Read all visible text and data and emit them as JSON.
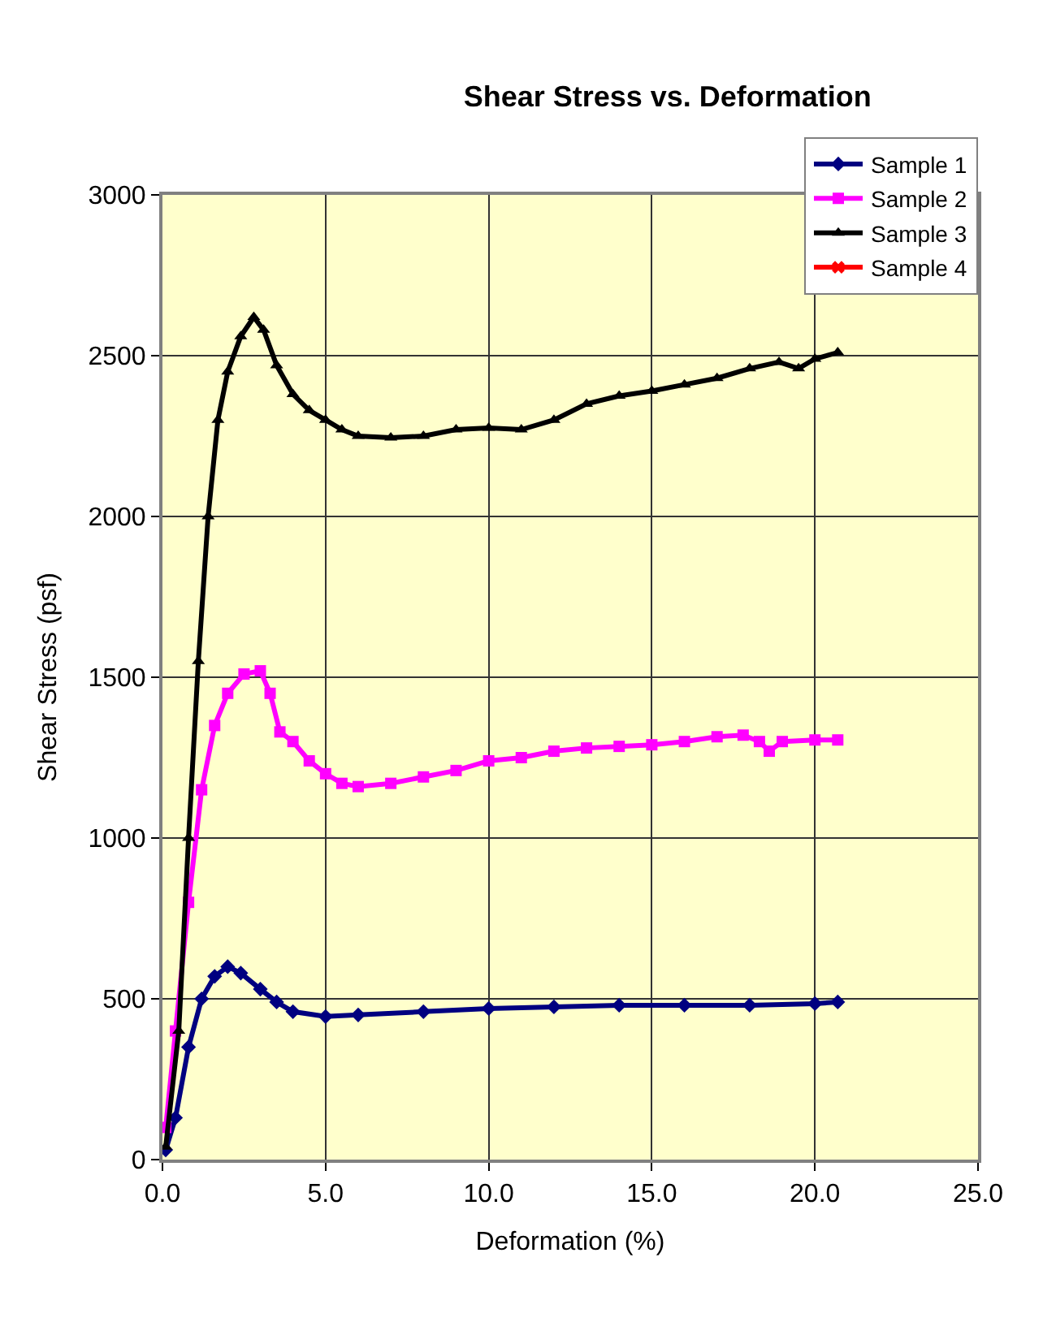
{
  "chart_data": {
    "type": "line",
    "title": "Shear Stress vs. Deformation",
    "xlabel": "Deformation (%)",
    "ylabel": "Shear Stress (psf)",
    "xlim": [
      0,
      25
    ],
    "xticks": [
      {
        "value": 0,
        "label": "0.0"
      },
      {
        "value": 5,
        "label": "5.0"
      },
      {
        "value": 10,
        "label": "10.0"
      },
      {
        "value": 15,
        "label": "15.0"
      },
      {
        "value": 20,
        "label": "20.0"
      },
      {
        "value": 25,
        "label": "25.0"
      }
    ],
    "ylim": [
      0,
      3000
    ],
    "yticks": [
      0,
      500,
      1000,
      1500,
      2000,
      2500,
      3000
    ],
    "grid": true,
    "legend": "top right",
    "series": [
      {
        "name": "Sample 1",
        "color": "#000080",
        "marker": "diamond",
        "x": [
          0.1,
          0.4,
          0.8,
          1.2,
          1.6,
          2.0,
          2.4,
          3.0,
          3.5,
          4.0,
          5.0,
          6.0,
          8.0,
          10.0,
          12.0,
          14.0,
          16.0,
          18.0,
          20.0,
          20.7
        ],
        "values": [
          30,
          130,
          350,
          500,
          570,
          600,
          580,
          530,
          490,
          460,
          445,
          450,
          460,
          470,
          475,
          480,
          480,
          480,
          485,
          490
        ]
      },
      {
        "name": "Sample 2",
        "color": "#ff00ff",
        "marker": "square",
        "x": [
          0.1,
          0.4,
          0.8,
          1.2,
          1.6,
          2.0,
          2.5,
          3.0,
          3.3,
          3.6,
          4.0,
          4.5,
          5.0,
          5.5,
          6.0,
          7.0,
          8.0,
          9.0,
          10.0,
          11.0,
          12.0,
          13.0,
          14.0,
          15.0,
          16.0,
          17.0,
          17.8,
          18.3,
          18.6,
          19.0,
          20.0,
          20.7
        ],
        "values": [
          100,
          400,
          800,
          1150,
          1350,
          1450,
          1510,
          1520,
          1450,
          1330,
          1300,
          1240,
          1200,
          1170,
          1160,
          1170,
          1190,
          1210,
          1240,
          1250,
          1270,
          1280,
          1285,
          1290,
          1300,
          1315,
          1320,
          1300,
          1270,
          1300,
          1305,
          1305
        ]
      },
      {
        "name": "Sample 3",
        "color": "#000000",
        "marker": "triangle",
        "x": [
          0.1,
          0.5,
          0.8,
          1.1,
          1.4,
          1.7,
          2.0,
          2.4,
          2.8,
          3.1,
          3.5,
          4.0,
          4.5,
          5.0,
          5.5,
          6.0,
          7.0,
          8.0,
          9.0,
          10.0,
          11.0,
          12.0,
          13.0,
          14.0,
          15.0,
          16.0,
          17.0,
          18.0,
          18.9,
          19.5,
          20.0,
          20.7
        ],
        "values": [
          40,
          400,
          1000,
          1550,
          2000,
          2300,
          2450,
          2560,
          2620,
          2580,
          2470,
          2380,
          2330,
          2300,
          2270,
          2250,
          2245,
          2250,
          2270,
          2275,
          2270,
          2300,
          2350,
          2375,
          2390,
          2410,
          2430,
          2460,
          2480,
          2460,
          2490,
          2510
        ]
      },
      {
        "name": "Sample 4",
        "color": "#ff0000",
        "marker": "cross"
      }
    ]
  }
}
